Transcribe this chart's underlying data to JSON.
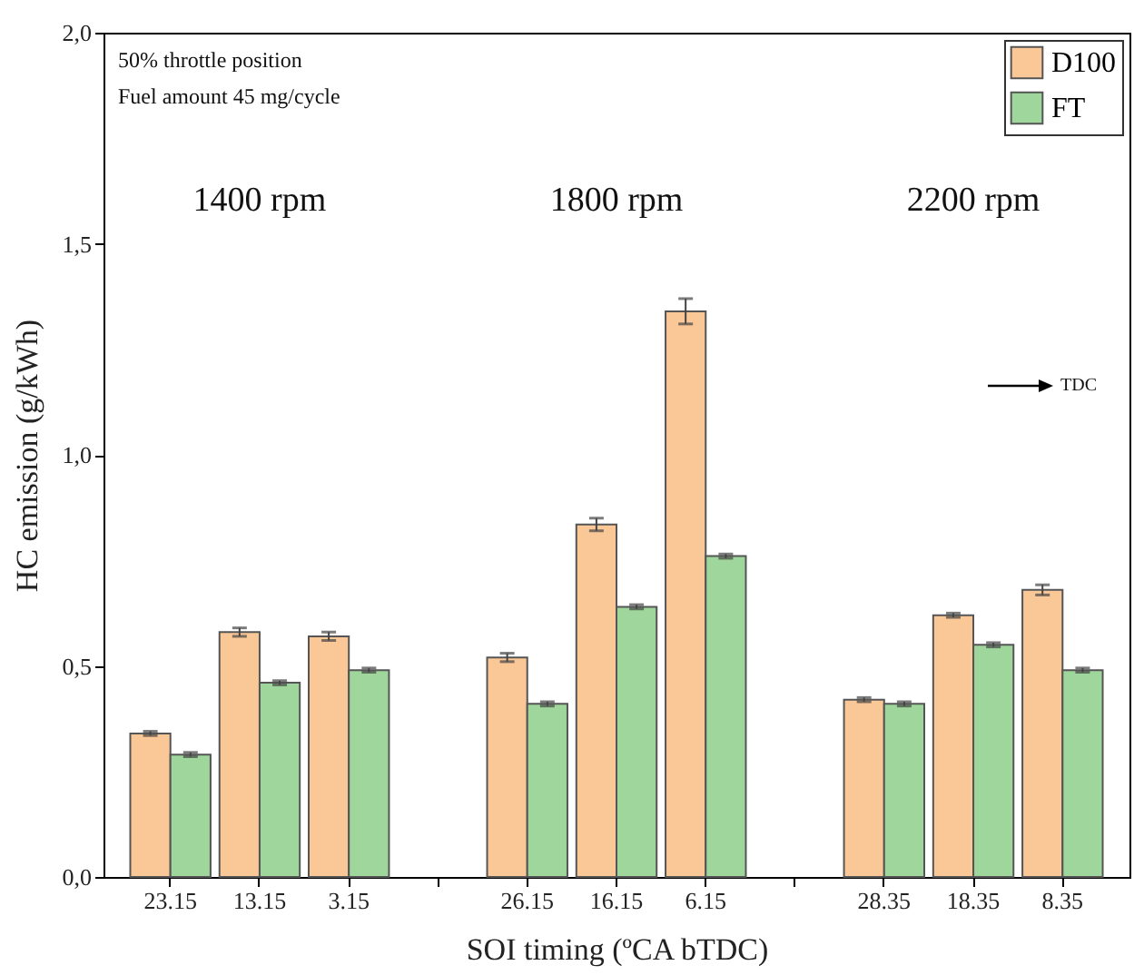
{
  "chart_data": {
    "type": "bar",
    "xlabel": "SOI timing (ºCA bTDC)",
    "ylabel": "HC emission (g/kWh)",
    "categories": [
      "23.15",
      "13.15",
      "3.15",
      null,
      "26.15",
      "16.15",
      "6.15",
      null,
      "28.35",
      "18.35",
      "8.35"
    ],
    "series": [
      {
        "name": "D100",
        "color": "#fac796",
        "values": [
          0.34,
          0.58,
          0.57,
          null,
          0.52,
          0.835,
          1.34,
          null,
          0.42,
          0.62,
          0.68
        ],
        "errors": [
          0.005,
          0.01,
          0.01,
          null,
          0.01,
          0.015,
          0.03,
          null,
          0.005,
          0.005,
          0.012
        ]
      },
      {
        "name": "FT",
        "color": "#9ed69b",
        "values": [
          0.29,
          0.46,
          0.49,
          null,
          0.41,
          0.64,
          0.76,
          null,
          0.41,
          0.55,
          0.49
        ],
        "errors": [
          0.005,
          0.005,
          0.005,
          null,
          0.005,
          0.005,
          0.005,
          null,
          0.005,
          0.005,
          0.005
        ]
      }
    ],
    "ylim": [
      0,
      2
    ],
    "yticks": [
      {
        "value": 0,
        "label": "0,0"
      },
      {
        "value": 0.5,
        "label": "0,5"
      },
      {
        "value": 1,
        "label": "1,0"
      },
      {
        "value": 1.5,
        "label": "1,5"
      },
      {
        "value": 2,
        "label": "2,0"
      }
    ],
    "legend": "top right",
    "grid": false,
    "annotations": [
      "50% throttle position",
      "Fuel amount 45 mg/cycle",
      "1400 rpm",
      "1800 rpm",
      "2200 rpm",
      "TDC"
    ]
  }
}
